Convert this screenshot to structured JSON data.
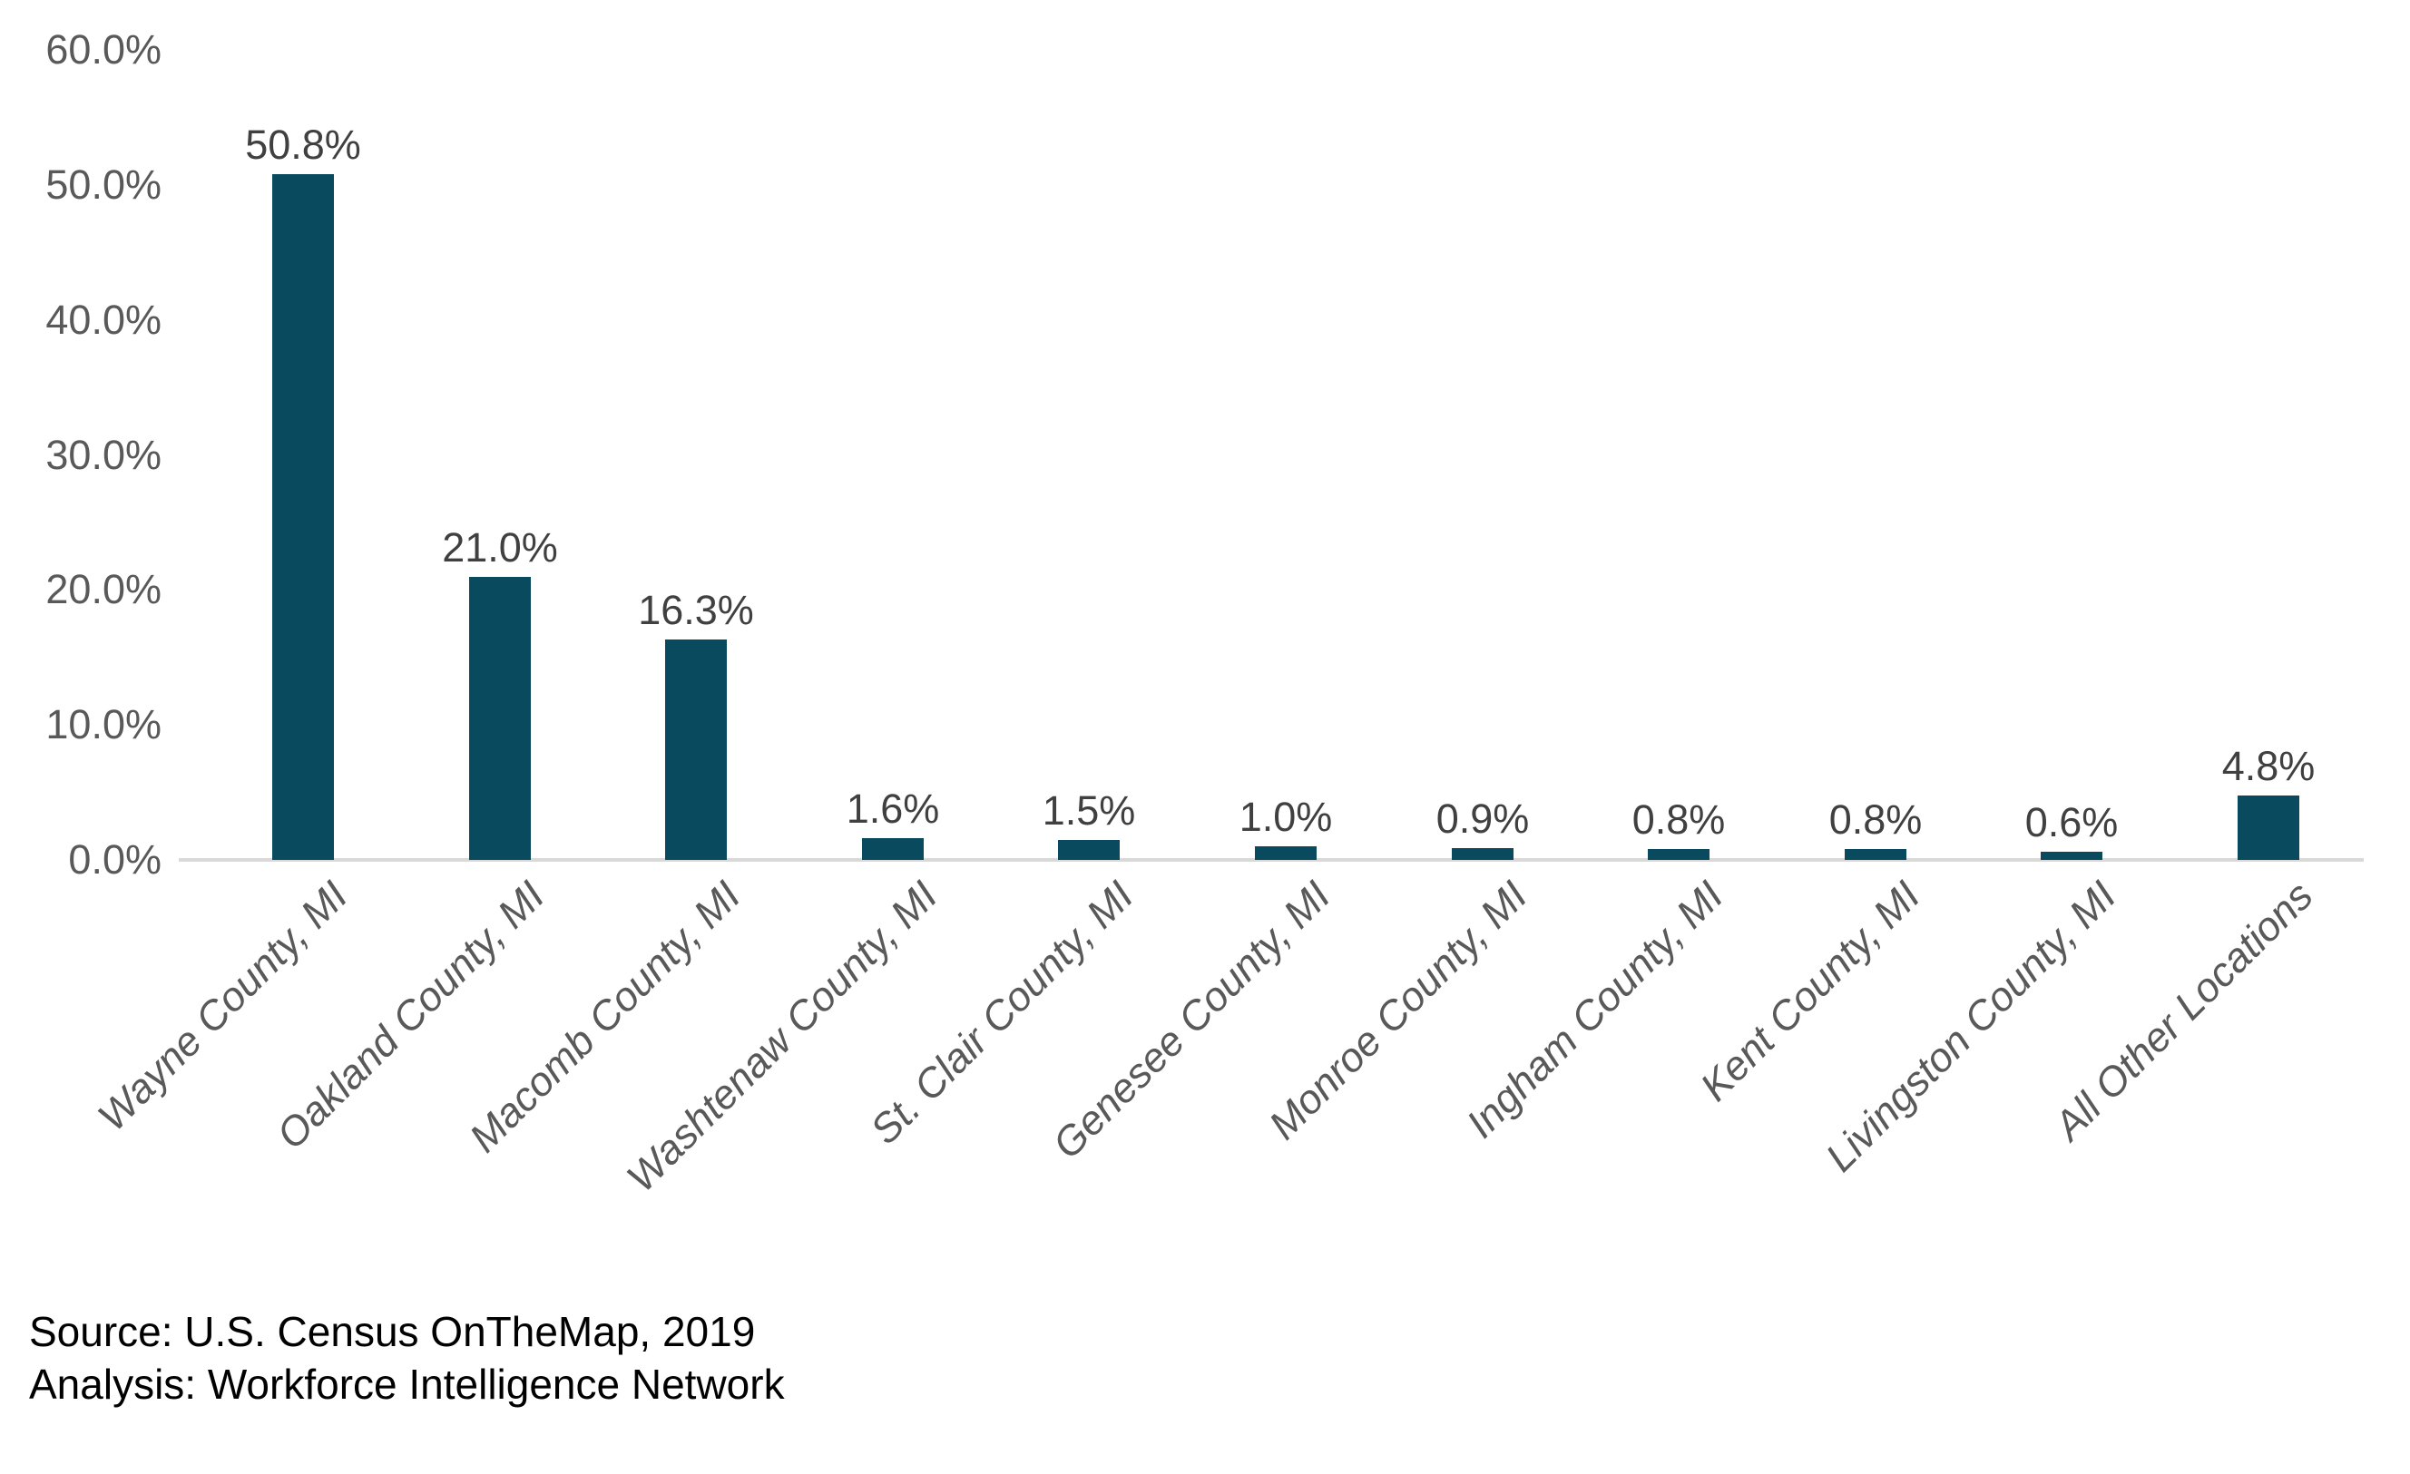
{
  "chart_data": {
    "type": "bar",
    "categories": [
      "Wayne County, MI",
      "Oakland County, MI",
      "Macomb County, MI",
      "Washtenaw County, MI",
      "St. Clair County, MI",
      "Genesee County, MI",
      "Monroe County, MI",
      "Ingham County, MI",
      "Kent County, MI",
      "Livingston County, MI",
      "All Other Locations"
    ],
    "values": [
      50.8,
      21.0,
      16.3,
      1.6,
      1.5,
      1.0,
      0.9,
      0.8,
      0.8,
      0.6,
      4.8
    ],
    "value_labels": [
      "50.8%",
      "21.0%",
      "16.3%",
      "1.6%",
      "1.5%",
      "1.0%",
      "0.9%",
      "0.8%",
      "0.8%",
      "0.6%",
      "4.8%"
    ],
    "title": "",
    "xlabel": "",
    "ylabel": "",
    "ylim": [
      0,
      60
    ],
    "yticks": [
      0,
      10,
      20,
      30,
      40,
      50,
      60
    ],
    "ytick_labels": [
      "0.0%",
      "10.0%",
      "20.0%",
      "30.0%",
      "40.0%",
      "50.0%",
      "60.0%"
    ],
    "grid": false,
    "legend_position": "none",
    "colors": {
      "bar": "#0a4a5e",
      "axis_line": "#d9d9d9",
      "tick_label": "#595959",
      "category_label": "#595959",
      "value_label": "#404040",
      "footer_text": "#000000",
      "background": "#ffffff"
    }
  },
  "footer": {
    "source_line": "Source: U.S. Census OnTheMap, 2019",
    "analysis_line": "Analysis: Workforce Intelligence Network"
  }
}
